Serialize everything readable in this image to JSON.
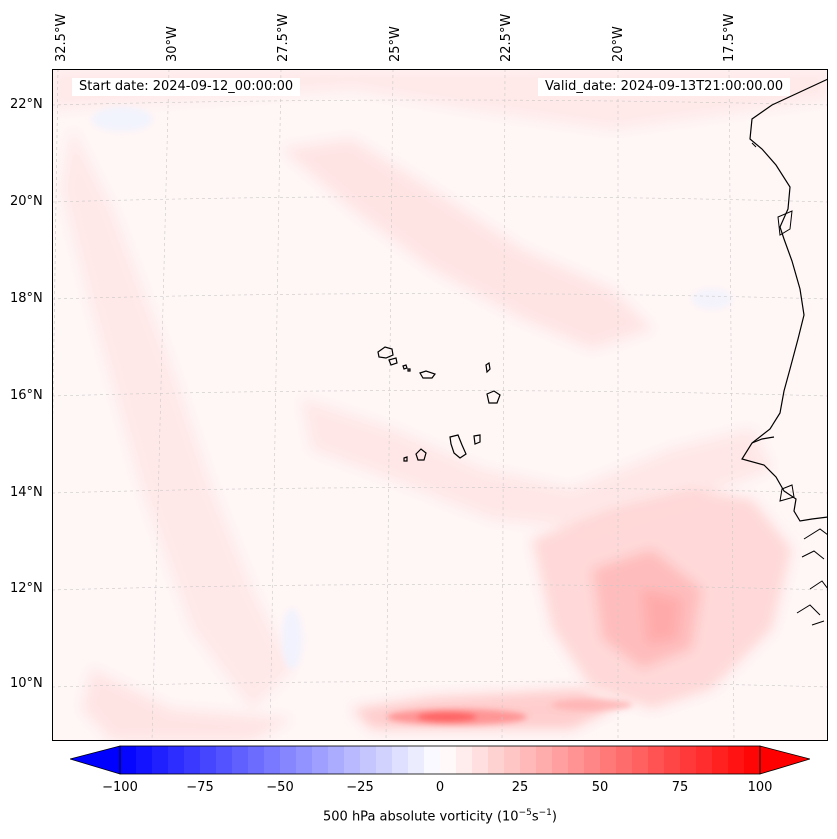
{
  "map": {
    "start_date": "Start date: 2024-09-12_00:00:00",
    "valid_date": "Valid_date: 2024-09-13T21:00:00.00",
    "lon_labels": [
      "32.5°W",
      "30°W",
      "27.5°W",
      "25°W",
      "22.5°W",
      "20°W",
      "17.5°W"
    ],
    "lat_labels": [
      "22°N",
      "20°N",
      "18°N",
      "16°N",
      "14°N",
      "12°N",
      "10°N"
    ]
  },
  "colorbar": {
    "ticks": [
      "−100",
      "−75",
      "−50",
      "−25",
      "0",
      "25",
      "50",
      "75",
      "100"
    ],
    "title": "500 hPa absolute vorticity (10",
    "title_exp1": "−5",
    "title_mid": "s",
    "title_exp2": "−1",
    "title_end": ")",
    "min": -100,
    "max": 100,
    "colors": {
      "low": "#0000ff",
      "mid": "#ffffff",
      "high": "#ff0000"
    }
  }
}
